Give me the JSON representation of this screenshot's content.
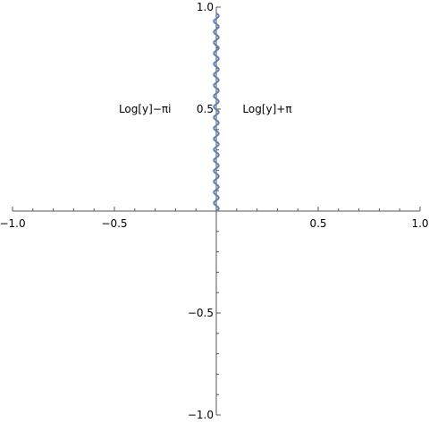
{
  "chart_data": {
    "type": "line",
    "title": "",
    "xlabel": "",
    "ylabel": "",
    "xlim": [
      -1.0,
      1.0
    ],
    "ylim": [
      -1.0,
      1.0
    ],
    "grid": false,
    "x_ticks": [
      -1.0,
      -0.5,
      0.5,
      1.0
    ],
    "x_tick_labels": [
      "−1.0",
      "−0.5",
      "0.5",
      "1.0"
    ],
    "y_ticks": [
      1.0,
      0.5,
      -0.5,
      -1.0
    ],
    "y_tick_labels": [
      "1.0",
      "0.5",
      "−0.5",
      "−1.0"
    ],
    "annotations": [
      {
        "text": "Log[y]−πi",
        "x": -0.35,
        "y": 0.5
      },
      {
        "text": "Log[y]+π",
        "x": 0.25,
        "y": 0.5
      }
    ],
    "series": [
      {
        "color": "#5e81b5",
        "x_center": 0.0,
        "amplitude": 0.012,
        "y_start": 0.0,
        "y_end": 0.97,
        "oscillations": 18.5
      }
    ]
  }
}
